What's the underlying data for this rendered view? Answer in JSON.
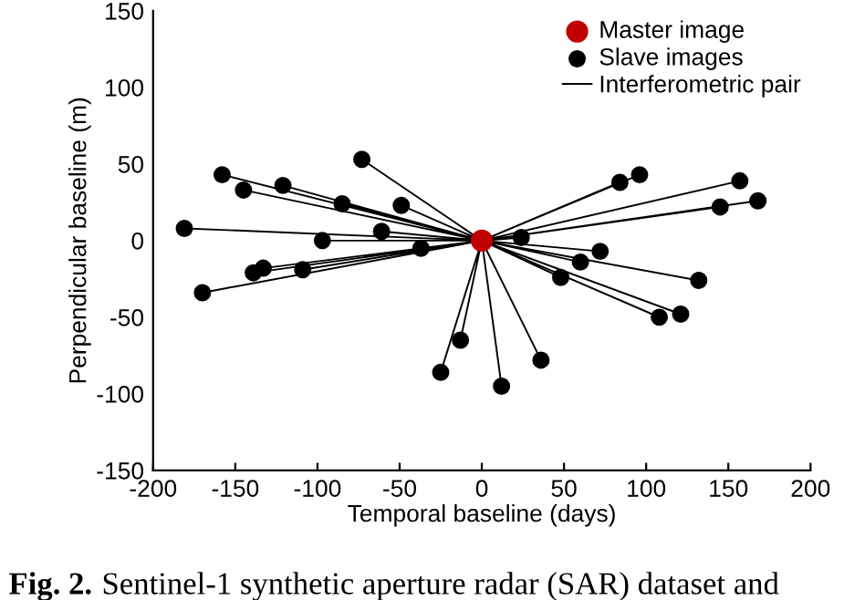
{
  "chart_data": {
    "type": "scatter",
    "xlabel": "Temporal baseline (days)",
    "ylabel": "Perpendicular baseline (m)",
    "xlim": [
      -200,
      200
    ],
    "xticks": [
      -200,
      -150,
      -100,
      -50,
      0,
      50,
      100,
      150,
      200
    ],
    "ylim": [
      -150,
      150
    ],
    "yticks": [
      -150,
      -100,
      -50,
      0,
      50,
      100,
      150
    ],
    "grid": false,
    "legend": "top right",
    "annotations": [
      "Fig. 2.",
      "Sentinel-1 synthetic aperture radar (SAR) dataset and"
    ],
    "series": [
      {
        "name": "Interferometric pair",
        "type": "line",
        "color": "#000000",
        "line_style": "solid",
        "marker": "none",
        "x": [
          0,
          -73,
          null,
          0,
          -158,
          null,
          0,
          -145,
          null,
          0,
          -121,
          null,
          0,
          -85,
          null,
          0,
          -49,
          null,
          0,
          -181,
          null,
          0,
          -61,
          null,
          0,
          -97,
          null,
          0,
          -37,
          null,
          0,
          -139,
          null,
          0,
          -133,
          null,
          0,
          -109,
          null,
          0,
          -170,
          null,
          0,
          -25,
          null,
          0,
          -13,
          null,
          0,
          12,
          null,
          0,
          36,
          null,
          0,
          48,
          null,
          0,
          60,
          null,
          0,
          72,
          null,
          0,
          24,
          null,
          0,
          84,
          null,
          0,
          96,
          null,
          0,
          157,
          null,
          0,
          168,
          null,
          0,
          145,
          null,
          0,
          132,
          null,
          0,
          121,
          null,
          0,
          108
        ],
        "values": [
          0,
          53,
          null,
          0,
          43,
          null,
          0,
          33,
          null,
          0,
          36,
          null,
          0,
          24,
          null,
          0,
          23,
          null,
          0,
          8,
          null,
          0,
          6,
          null,
          0,
          0,
          null,
          0,
          -5,
          null,
          0,
          -21,
          null,
          0,
          -18,
          null,
          0,
          -19,
          null,
          0,
          -34,
          null,
          0,
          -86,
          null,
          0,
          -65,
          null,
          0,
          -95,
          null,
          0,
          -78,
          null,
          0,
          -24,
          null,
          0,
          -14,
          null,
          0,
          -7,
          null,
          0,
          2,
          null,
          0,
          38,
          null,
          0,
          43,
          null,
          0,
          39,
          null,
          0,
          26,
          null,
          0,
          22,
          null,
          0,
          -26,
          null,
          0,
          -48,
          null,
          0,
          -50
        ]
      },
      {
        "name": "Slave images",
        "color": "#000000",
        "marker": "circle",
        "x": [
          -73,
          -158,
          -145,
          -121,
          -85,
          -49,
          -181,
          -61,
          -97,
          -37,
          -139,
          -133,
          -109,
          -170,
          -25,
          -13,
          12,
          36,
          48,
          60,
          72,
          24,
          84,
          96,
          157,
          168,
          145,
          132,
          121,
          108
        ],
        "values": [
          53,
          43,
          33,
          36,
          24,
          23,
          8,
          6,
          0,
          -5,
          -21,
          -18,
          -19,
          -34,
          -86,
          -65,
          -95,
          -78,
          -24,
          -14,
          -7,
          2,
          38,
          43,
          39,
          26,
          22,
          -26,
          -48,
          -50
        ]
      },
      {
        "name": "Master image",
        "color": "#c00000",
        "marker": "circle",
        "x": [
          0
        ],
        "values": [
          0
        ]
      }
    ]
  }
}
